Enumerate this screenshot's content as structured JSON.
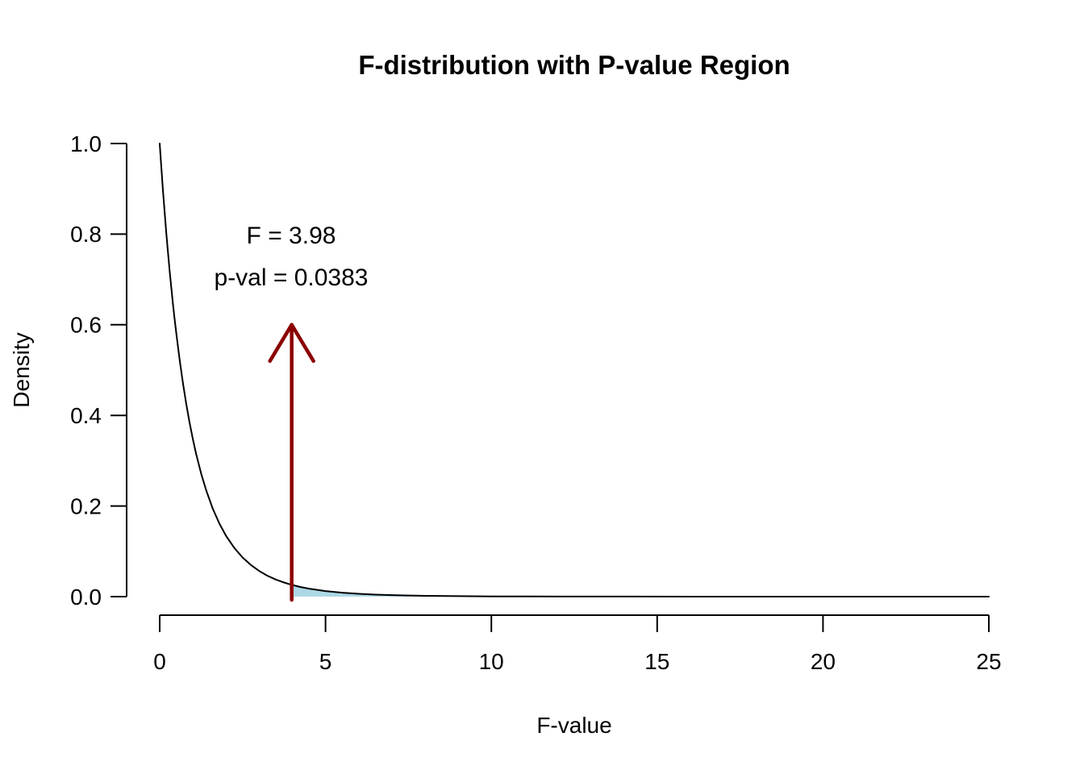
{
  "chart_data": {
    "type": "area",
    "title": "F-distribution with P-value Region",
    "xlabel": "F-value",
    "ylabel": "Density",
    "xlim": [
      0,
      25
    ],
    "ylim": [
      0,
      1
    ],
    "grid": false,
    "legend": null,
    "x_ticks": [
      0,
      5,
      10,
      15,
      20,
      25
    ],
    "x_tick_labels": [
      "0",
      "5",
      "10",
      "15",
      "20",
      "25"
    ],
    "y_ticks": [
      0,
      0.2,
      0.4,
      0.6,
      0.8,
      1.0
    ],
    "y_tick_labels": [
      "0.0",
      "0.2",
      "0.4",
      "0.6",
      "0.8",
      "1.0"
    ],
    "curve": {
      "name": "f-distribution-density",
      "x": [
        0,
        0.05,
        0.1,
        0.15,
        0.2,
        0.25,
        0.3,
        0.35,
        0.4,
        0.45,
        0.5,
        0.6,
        0.7,
        0.8,
        0.9,
        1,
        1.1,
        1.25,
        1.4,
        1.6,
        1.8,
        2,
        2.25,
        2.5,
        2.75,
        3,
        3.25,
        3.5,
        3.75,
        3.98,
        4.25,
        4.5,
        5,
        5.5,
        6,
        6.5,
        7,
        7.5,
        8,
        9,
        10,
        11,
        12,
        14,
        16,
        18,
        20,
        22.5,
        25
      ],
      "y": [
        1,
        0.9458,
        0.8948,
        0.8469,
        0.8018,
        0.7593,
        0.7193,
        0.6816,
        0.6461,
        0.6126,
        0.581,
        0.5231,
        0.4715,
        0.4255,
        0.3844,
        0.3477,
        0.3147,
        0.2716,
        0.2349,
        0.1942,
        0.1612,
        0.1343,
        0.1074,
        0.0863,
        0.0698,
        0.0566,
        0.0461,
        0.0378,
        0.0311,
        0.026,
        0.0212,
        0.0177,
        0.0123,
        0.0087,
        0.0063,
        0.0045,
        0.0033,
        0.0025,
        0.0018,
        0.0011,
        0.0006,
        0.0004,
        0.0002,
        0.0001,
        5e-05,
        2e-05,
        1e-05,
        5e-06,
        2e-06
      ]
    },
    "shaded_region": {
      "name": "p-value-region",
      "from_x": 3.98,
      "to_x": 25,
      "fill": "#ADD8E6"
    },
    "arrow": {
      "x": 3.98,
      "y_from": 0,
      "y_to": 0.6,
      "color": "#8B0000"
    },
    "annotation": {
      "line1": "F = 3.98",
      "line2": "p-val = 0.0383"
    },
    "colors": {
      "curve": "#000000",
      "axis": "#000000",
      "shade": "#ADD8E6",
      "arrow": "#8B0000",
      "text": "#000000"
    }
  }
}
